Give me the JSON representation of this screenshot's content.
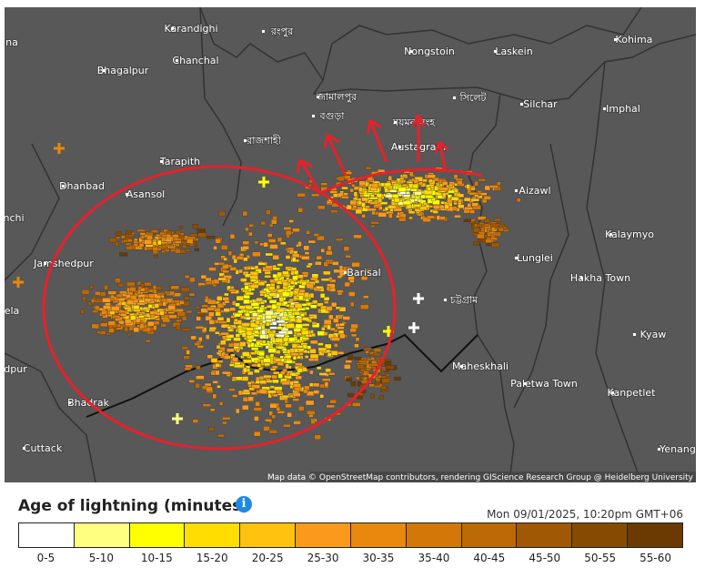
{
  "map": {
    "places": [
      "Karandighi",
      "রংপুর",
      "Kohima",
      "Nongstoin",
      "Laskein",
      "Chanchal",
      "Bhagalpur",
      "জামালপুর",
      "সিলেট",
      "Silchar",
      "Imphal",
      "বগুড়া",
      "ময়মনসিংহ",
      "রাজশাহী",
      "Austagram",
      "Tarapith",
      "Dhanbad",
      "Asansol",
      "Aizawl",
      "Kalaymyo",
      "Jamshedpur",
      "Lunglei",
      "Barisal",
      "Hakha Town",
      "চট্টগ্রাম",
      "Kyaw",
      "Maheskhali",
      "Paletwa Town",
      "Kanpetlet",
      "Bhadrak",
      "Cuttack",
      "Yenang",
      "nchi",
      "ela",
      "dpur",
      "na"
    ],
    "attribution": "Map data © OpenStreetMap contributors, rendering GIScience Research Group @ Heidelberg University"
  },
  "legend": {
    "title": "Age of lightning (minutes)",
    "timestamp": "Mon 09/01/2025, 10:20pm GMT+06",
    "bins": [
      {
        "label": "0-5",
        "color": "#ffffff"
      },
      {
        "label": "5-10",
        "color": "#ffff80"
      },
      {
        "label": "10-15",
        "color": "#ffff00"
      },
      {
        "label": "15-20",
        "color": "#ffdd00"
      },
      {
        "label": "20-25",
        "color": "#ffc20e"
      },
      {
        "label": "25-30",
        "color": "#f99a1c"
      },
      {
        "label": "30-35",
        "color": "#e8880c"
      },
      {
        "label": "35-40",
        "color": "#d37808"
      },
      {
        "label": "40-45",
        "color": "#bb6a06"
      },
      {
        "label": "45-50",
        "color": "#a05804"
      },
      {
        "label": "50-55",
        "color": "#874a03"
      },
      {
        "label": "55-60",
        "color": "#6a3a02"
      }
    ]
  }
}
